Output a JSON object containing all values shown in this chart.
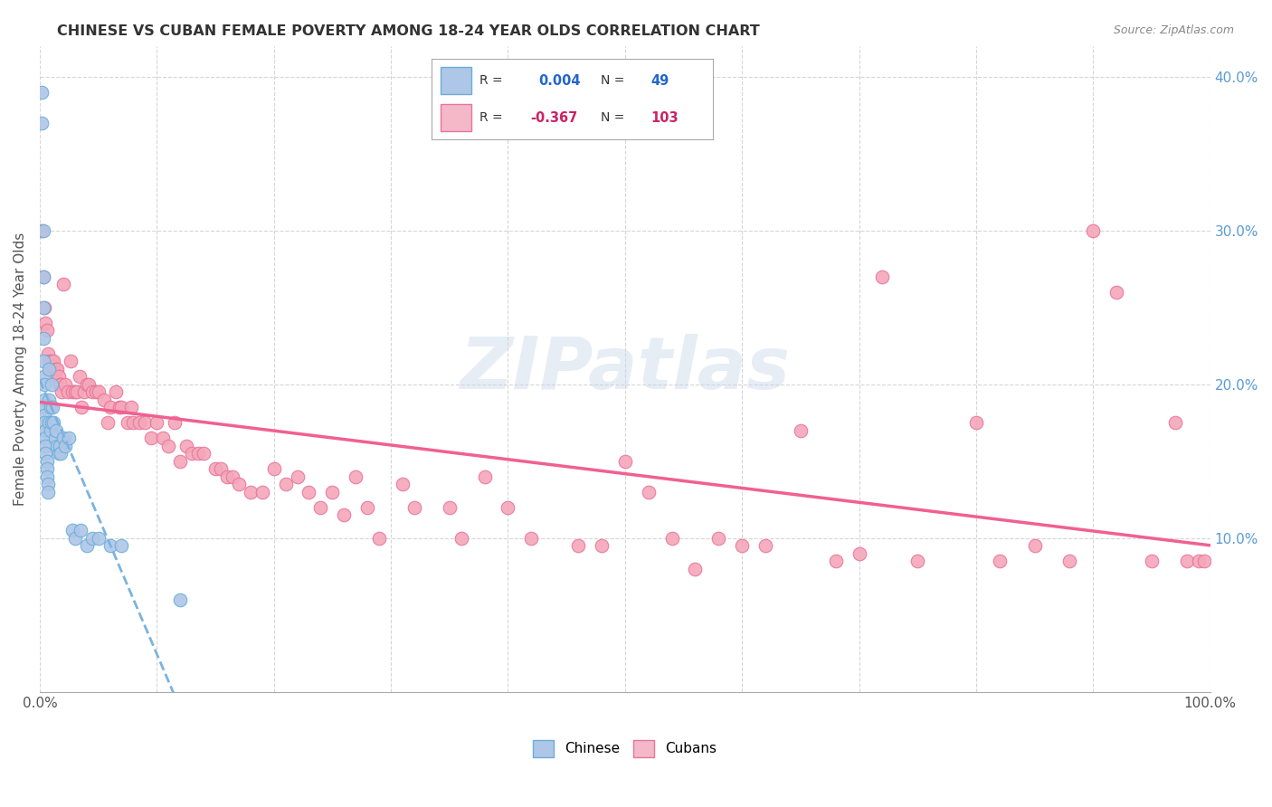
{
  "title": "CHINESE VS CUBAN FEMALE POVERTY AMONG 18-24 YEAR OLDS CORRELATION CHART",
  "source": "Source: ZipAtlas.com",
  "ylabel": "Female Poverty Among 18-24 Year Olds",
  "xlim": [
    0.0,
    1.0
  ],
  "ylim": [
    0.0,
    0.42
  ],
  "xtick_positions": [
    0.0,
    0.1,
    0.2,
    0.3,
    0.4,
    0.5,
    0.6,
    0.7,
    0.8,
    0.9,
    1.0
  ],
  "xtick_labels": [
    "0.0%",
    "",
    "",
    "",
    "",
    "",
    "",
    "",
    "",
    "",
    "100.0%"
  ],
  "ytick_positions": [
    0.0,
    0.1,
    0.2,
    0.3,
    0.4
  ],
  "ytick_labels": [
    "",
    "10.0%",
    "20.0%",
    "30.0%",
    "40.0%"
  ],
  "chinese_color": "#aec6e8",
  "cuban_color": "#f4a7b9",
  "chinese_edge": "#6aaed6",
  "cuban_edge": "#e8749a",
  "trendline_chinese_color": "#7ab3e0",
  "trendline_cuban_color": "#f06090",
  "legend_box_chinese_color": "#aec6e8",
  "legend_box_cuban_color": "#f4b8c8",
  "watermark": "ZIPatlas",
  "R_chinese": 0.004,
  "N_chinese": 49,
  "R_cuban": -0.367,
  "N_cuban": 103,
  "chinese_x": [
    0.002,
    0.002,
    0.003,
    0.003,
    0.003,
    0.003,
    0.003,
    0.004,
    0.004,
    0.004,
    0.004,
    0.004,
    0.004,
    0.005,
    0.005,
    0.005,
    0.005,
    0.006,
    0.006,
    0.006,
    0.007,
    0.007,
    0.008,
    0.008,
    0.008,
    0.009,
    0.009,
    0.01,
    0.01,
    0.011,
    0.012,
    0.013,
    0.014,
    0.015,
    0.016,
    0.017,
    0.018,
    0.02,
    0.022,
    0.025,
    0.028,
    0.03,
    0.035,
    0.04,
    0.045,
    0.05,
    0.06,
    0.07,
    0.12
  ],
  "chinese_y": [
    0.39,
    0.37,
    0.3,
    0.27,
    0.25,
    0.23,
    0.215,
    0.205,
    0.2,
    0.19,
    0.185,
    0.18,
    0.175,
    0.17,
    0.165,
    0.16,
    0.155,
    0.15,
    0.145,
    0.14,
    0.135,
    0.13,
    0.21,
    0.19,
    0.175,
    0.185,
    0.17,
    0.2,
    0.175,
    0.185,
    0.175,
    0.165,
    0.17,
    0.16,
    0.155,
    0.16,
    0.155,
    0.165,
    0.16,
    0.165,
    0.105,
    0.1,
    0.105,
    0.095,
    0.1,
    0.1,
    0.095,
    0.095,
    0.06
  ],
  "cuban_x": [
    0.002,
    0.003,
    0.004,
    0.005,
    0.006,
    0.007,
    0.008,
    0.009,
    0.01,
    0.011,
    0.012,
    0.013,
    0.014,
    0.015,
    0.016,
    0.017,
    0.018,
    0.019,
    0.02,
    0.022,
    0.024,
    0.026,
    0.028,
    0.03,
    0.032,
    0.034,
    0.036,
    0.038,
    0.04,
    0.042,
    0.045,
    0.048,
    0.05,
    0.055,
    0.058,
    0.06,
    0.065,
    0.068,
    0.07,
    0.075,
    0.078,
    0.08,
    0.085,
    0.09,
    0.095,
    0.1,
    0.105,
    0.11,
    0.115,
    0.12,
    0.125,
    0.13,
    0.135,
    0.14,
    0.15,
    0.155,
    0.16,
    0.165,
    0.17,
    0.18,
    0.19,
    0.2,
    0.21,
    0.22,
    0.23,
    0.24,
    0.25,
    0.26,
    0.27,
    0.28,
    0.29,
    0.31,
    0.32,
    0.35,
    0.36,
    0.38,
    0.4,
    0.42,
    0.46,
    0.48,
    0.5,
    0.52,
    0.54,
    0.56,
    0.58,
    0.6,
    0.62,
    0.65,
    0.68,
    0.7,
    0.72,
    0.75,
    0.8,
    0.82,
    0.85,
    0.88,
    0.9,
    0.92,
    0.95,
    0.97,
    0.98,
    0.99,
    0.995
  ],
  "cuban_y": [
    0.3,
    0.27,
    0.25,
    0.24,
    0.235,
    0.22,
    0.215,
    0.21,
    0.215,
    0.21,
    0.215,
    0.205,
    0.21,
    0.21,
    0.205,
    0.2,
    0.2,
    0.195,
    0.265,
    0.2,
    0.195,
    0.215,
    0.195,
    0.195,
    0.195,
    0.205,
    0.185,
    0.195,
    0.2,
    0.2,
    0.195,
    0.195,
    0.195,
    0.19,
    0.175,
    0.185,
    0.195,
    0.185,
    0.185,
    0.175,
    0.185,
    0.175,
    0.175,
    0.175,
    0.165,
    0.175,
    0.165,
    0.16,
    0.175,
    0.15,
    0.16,
    0.155,
    0.155,
    0.155,
    0.145,
    0.145,
    0.14,
    0.14,
    0.135,
    0.13,
    0.13,
    0.145,
    0.135,
    0.14,
    0.13,
    0.12,
    0.13,
    0.115,
    0.14,
    0.12,
    0.1,
    0.135,
    0.12,
    0.12,
    0.1,
    0.14,
    0.12,
    0.1,
    0.095,
    0.095,
    0.15,
    0.13,
    0.1,
    0.08,
    0.1,
    0.095,
    0.095,
    0.17,
    0.085,
    0.09,
    0.27,
    0.085,
    0.175,
    0.085,
    0.095,
    0.085,
    0.3,
    0.26,
    0.085,
    0.175,
    0.085,
    0.085,
    0.085
  ]
}
